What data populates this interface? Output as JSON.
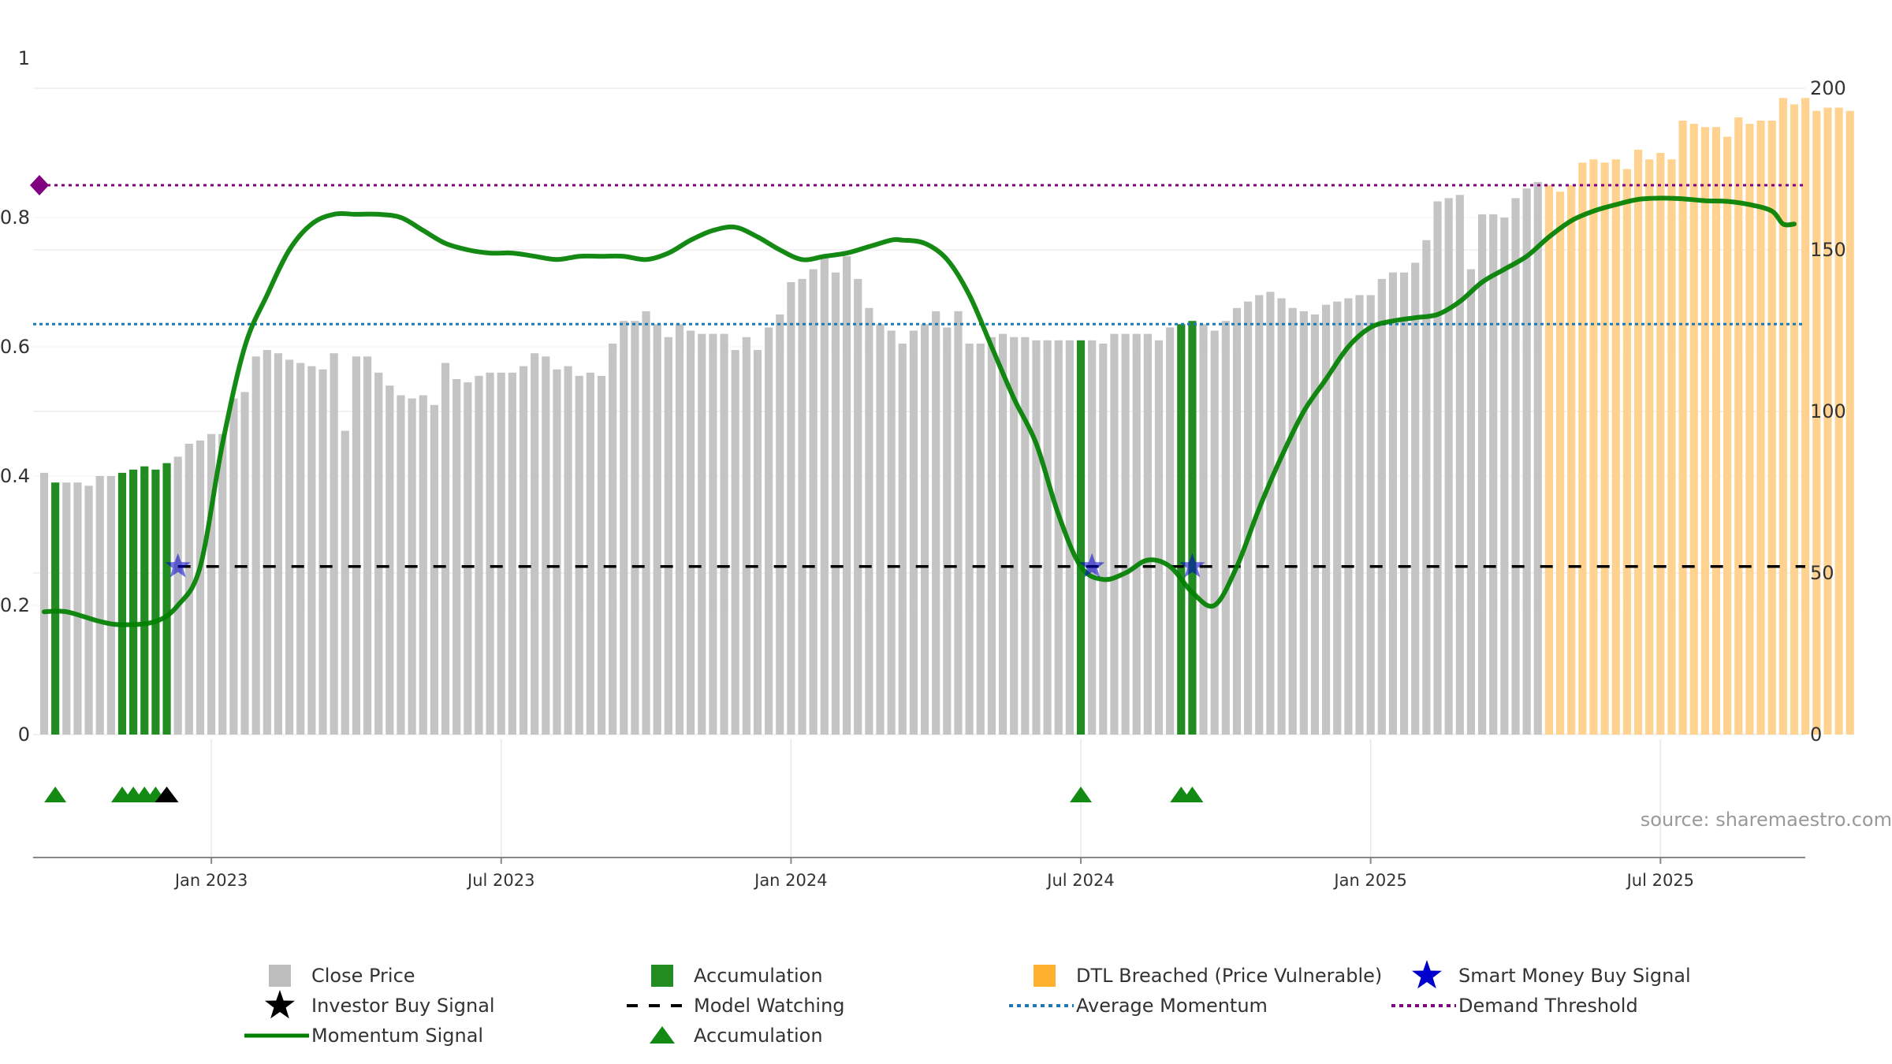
{
  "chart_data": {
    "type": "bar",
    "title": "",
    "source": "source: sharemaestro.com",
    "x_ticks": [
      {
        "label": "Jan 2023",
        "week": 15
      },
      {
        "label": "Jul 2023",
        "week": 41
      },
      {
        "label": "Jan 2024",
        "week": 67
      },
      {
        "label": "Jul 2024",
        "week": 93
      },
      {
        "label": "Jan 2025",
        "week": 119
      },
      {
        "label": "Jul 2025",
        "week": 145
      }
    ],
    "y_left": {
      "range": [
        0,
        1
      ],
      "ticks": [
        "0",
        "0.2",
        "0.4",
        "0.6",
        "0.8",
        "1"
      ],
      "tick_values": [
        0,
        0.2,
        0.4,
        0.6,
        0.8,
        1
      ]
    },
    "y_right": {
      "range": [
        0,
        200
      ],
      "ticks": [
        "0",
        "50",
        "100",
        "150",
        "200"
      ],
      "tick_values": [
        0,
        50,
        100,
        150,
        200
      ]
    },
    "x_range": [
      0,
      157
    ],
    "close_prices": [
      81,
      78,
      78,
      78,
      77,
      80,
      80,
      81,
      82,
      83,
      82,
      84,
      86,
      90,
      91,
      93,
      93,
      104,
      106,
      117,
      119,
      118,
      116,
      115,
      114,
      113,
      118,
      94,
      117,
      117,
      112,
      108,
      105,
      104,
      105,
      102,
      115,
      110,
      109,
      111,
      112,
      112,
      112,
      114,
      118,
      117,
      113,
      114,
      111,
      112,
      111,
      121,
      128,
      128,
      131,
      127,
      123,
      127,
      125,
      124,
      124,
      124,
      119,
      123,
      119,
      126,
      130,
      140,
      141,
      144,
      148,
      143,
      148,
      141,
      132,
      127,
      125,
      121,
      125,
      127,
      131,
      126,
      131,
      121,
      121,
      123,
      124,
      123,
      123,
      122,
      122,
      122,
      122,
      122,
      122,
      121,
      124,
      124,
      124,
      124,
      122,
      126,
      127,
      128,
      127,
      125,
      128,
      132,
      134,
      136,
      137,
      135,
      132,
      131,
      130,
      133,
      134,
      135,
      136,
      136,
      141,
      143,
      143,
      146,
      153,
      165,
      166,
      167,
      144,
      161,
      161,
      160,
      166,
      169,
      171,
      170,
      168,
      170,
      177,
      178,
      177,
      178,
      175,
      181,
      178,
      180,
      178,
      190,
      189,
      188,
      188,
      185,
      191,
      189,
      190,
      190,
      197,
      195,
      197,
      193,
      194,
      194,
      193
    ],
    "bar_categories": {
      "accumulation_weeks": [
        1,
        7,
        8,
        9,
        10,
        11,
        93,
        102,
        103
      ],
      "dtl_breached_from_week": 135
    },
    "momentum": [
      [
        0,
        0.19
      ],
      [
        2,
        0.19
      ],
      [
        5,
        0.175
      ],
      [
        7,
        0.17
      ],
      [
        10,
        0.175
      ],
      [
        12,
        0.2
      ],
      [
        14,
        0.26
      ],
      [
        16,
        0.45
      ],
      [
        18,
        0.6
      ],
      [
        20,
        0.68
      ],
      [
        22,
        0.75
      ],
      [
        24,
        0.79
      ],
      [
        26,
        0.805
      ],
      [
        28,
        0.805
      ],
      [
        30,
        0.805
      ],
      [
        32,
        0.8
      ],
      [
        34,
        0.78
      ],
      [
        36,
        0.76
      ],
      [
        38,
        0.75
      ],
      [
        40,
        0.745
      ],
      [
        42,
        0.745
      ],
      [
        44,
        0.74
      ],
      [
        46,
        0.735
      ],
      [
        48,
        0.74
      ],
      [
        50,
        0.74
      ],
      [
        52,
        0.74
      ],
      [
        54,
        0.735
      ],
      [
        56,
        0.745
      ],
      [
        58,
        0.765
      ],
      [
        60,
        0.78
      ],
      [
        62,
        0.785
      ],
      [
        64,
        0.77
      ],
      [
        66,
        0.75
      ],
      [
        68,
        0.735
      ],
      [
        70,
        0.74
      ],
      [
        72,
        0.745
      ],
      [
        74,
        0.755
      ],
      [
        76,
        0.765
      ],
      [
        77,
        0.765
      ],
      [
        79,
        0.76
      ],
      [
        81,
        0.735
      ],
      [
        83,
        0.68
      ],
      [
        85,
        0.6
      ],
      [
        87,
        0.52
      ],
      [
        89,
        0.45
      ],
      [
        91,
        0.34
      ],
      [
        93,
        0.26
      ],
      [
        95,
        0.24
      ],
      [
        97,
        0.25
      ],
      [
        99,
        0.27
      ],
      [
        101,
        0.26
      ],
      [
        103,
        0.22
      ],
      [
        105,
        0.2
      ],
      [
        107,
        0.26
      ],
      [
        109,
        0.35
      ],
      [
        111,
        0.43
      ],
      [
        113,
        0.5
      ],
      [
        115,
        0.55
      ],
      [
        117,
        0.6
      ],
      [
        119,
        0.63
      ],
      [
        121,
        0.64
      ],
      [
        123,
        0.645
      ],
      [
        125,
        0.65
      ],
      [
        127,
        0.67
      ],
      [
        129,
        0.7
      ],
      [
        131,
        0.72
      ],
      [
        133,
        0.74
      ],
      [
        135,
        0.77
      ],
      [
        137,
        0.795
      ],
      [
        139,
        0.81
      ],
      [
        141,
        0.82
      ],
      [
        143,
        0.828
      ],
      [
        145,
        0.83
      ],
      [
        147,
        0.829
      ],
      [
        149,
        0.826
      ],
      [
        151,
        0.825
      ],
      [
        153,
        0.82
      ],
      [
        155,
        0.81
      ],
      [
        156,
        0.79
      ],
      [
        157,
        0.79
      ]
    ],
    "average_momentum": 0.635,
    "demand_threshold": 0.85,
    "model_watching": {
      "value": 0.26,
      "from_week": 12,
      "to_week": 157
    },
    "smart_money_buy_signals": [
      {
        "week": 12,
        "value": 0.26
      },
      {
        "week": 94,
        "value": 0.26
      },
      {
        "week": 103,
        "value": 0.26
      }
    ],
    "accumulation_markers": [
      1,
      7,
      8,
      9,
      10,
      93,
      102,
      103
    ],
    "investor_buy_signals": [
      11
    ],
    "colors": {
      "close_price": "#c4c4c4",
      "accumulation": "#228b22",
      "dtl_breached": "#ffd28f",
      "momentum": "#008000",
      "average_momentum": "#1f77b4",
      "demand_threshold": "#800080",
      "model_watching": "#000000",
      "smart_money": "#0000cd",
      "investor": "#000000",
      "accumulation_marker": "#138a13"
    },
    "legend": [
      {
        "label": "Close Price",
        "kind": "square",
        "color": "#bdbdbd"
      },
      {
        "label": "Accumulation",
        "kind": "square",
        "color": "#228b22"
      },
      {
        "label": "DTL Breached (Price Vulnerable)",
        "kind": "square",
        "color": "#ffb02e"
      },
      {
        "label": "Smart Money Buy Signal",
        "kind": "star",
        "color": "#0000cd"
      },
      {
        "label": "Investor Buy Signal",
        "kind": "star",
        "color": "#000000"
      },
      {
        "label": "Model Watching",
        "kind": "dash",
        "color": "#000000"
      },
      {
        "label": "Average Momentum",
        "kind": "dot",
        "color": "#1f77b4"
      },
      {
        "label": "Demand Threshold",
        "kind": "dot",
        "color": "#800080"
      },
      {
        "label": "Momentum Signal",
        "kind": "line",
        "color": "#008000"
      },
      {
        "label": "Accumulation",
        "kind": "triangle",
        "color": "#138a13"
      }
    ]
  }
}
